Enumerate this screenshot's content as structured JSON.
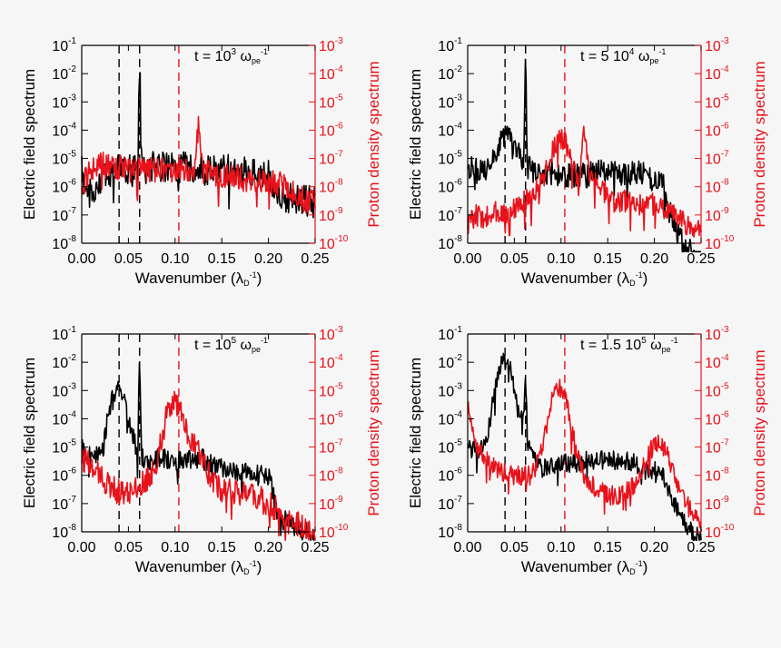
{
  "colors": {
    "electric": "#000000",
    "proton": "#e8121b",
    "background": "#f6f6f6"
  },
  "chart_data": [
    {
      "type": "line",
      "panel": "top-left",
      "annotation": {
        "prefix": "t = 10",
        "exp": "3",
        "unit": "ω",
        "sub": "pe",
        "sup": "-1"
      },
      "xlabel": "Wavenumber (λ",
      "xlabel_sub": "D",
      "xlabel_sup": "-1",
      "xlabel_end": ")",
      "ylabel_left": "Electric field spectrum",
      "ylabel_right": "Proton density spectrum",
      "xlim": [
        0,
        0.25
      ],
      "ylim_left_log10": [
        -8,
        -1
      ],
      "ylim_right_log10": [
        -10,
        -3
      ],
      "x_ticks": [
        "0.00",
        "0.05",
        "0.10",
        "0.15",
        "0.20",
        "0.25"
      ],
      "y_left_ticks": [
        {
          "base": "10",
          "exp": "-1"
        },
        {
          "base": "10",
          "exp": "-2"
        },
        {
          "base": "10",
          "exp": "-3"
        },
        {
          "base": "10",
          "exp": "-4"
        },
        {
          "base": "10",
          "exp": "-5"
        },
        {
          "base": "10",
          "exp": "-6"
        },
        {
          "base": "10",
          "exp": "-7"
        },
        {
          "base": "10",
          "exp": "-8"
        }
      ],
      "y_right_ticks": [
        {
          "base": "10",
          "exp": "-3"
        },
        {
          "base": "10",
          "exp": "-4"
        },
        {
          "base": "10",
          "exp": "-5"
        },
        {
          "base": "10",
          "exp": "-6"
        },
        {
          "base": "10",
          "exp": "-7"
        },
        {
          "base": "10",
          "exp": "-8"
        },
        {
          "base": "10",
          "exp": "-9"
        },
        {
          "base": "10",
          "exp": "-10"
        }
      ],
      "vlines": [
        {
          "x": 0.04,
          "color": "electric"
        },
        {
          "x": 0.062,
          "color": "electric"
        },
        {
          "x": 0.104,
          "color": "proton"
        }
      ],
      "series": [
        {
          "name": "Electric field spectrum",
          "axis": "left",
          "x": [
            0,
            0.005,
            0.01,
            0.015,
            0.02,
            0.025,
            0.03,
            0.035,
            0.04,
            0.045,
            0.05,
            0.055,
            0.06,
            0.062,
            0.064,
            0.07,
            0.08,
            0.09,
            0.1,
            0.11,
            0.12,
            0.13,
            0.14,
            0.15,
            0.16,
            0.17,
            0.18,
            0.19,
            0.2,
            0.21,
            0.22,
            0.23,
            0.24,
            0.25
          ],
          "log10": [
            -5.3,
            -6.6,
            -6.0,
            -6.4,
            -5.8,
            -5.7,
            -5.6,
            -5.5,
            -5.4,
            -5.5,
            -5.4,
            -5.3,
            -5.3,
            -1.5,
            -5.3,
            -5.2,
            -5.3,
            -5.3,
            -5.4,
            -5.3,
            -5.3,
            -5.4,
            -5.4,
            -5.4,
            -5.4,
            -5.5,
            -5.5,
            -5.6,
            -5.6,
            -6.2,
            -6.4,
            -6.5,
            -6.5,
            -6.5
          ],
          "noise": 0.55
        },
        {
          "name": "Proton density spectrum",
          "axis": "right",
          "x": [
            0,
            0.01,
            0.02,
            0.03,
            0.04,
            0.05,
            0.06,
            0.07,
            0.08,
            0.09,
            0.1,
            0.11,
            0.12,
            0.125,
            0.13,
            0.14,
            0.15,
            0.16,
            0.17,
            0.18,
            0.19,
            0.2,
            0.21,
            0.22,
            0.23,
            0.24,
            0.25
          ],
          "log10": [
            -8.0,
            -7.4,
            -7.2,
            -7.3,
            -7.3,
            -7.4,
            -7.4,
            -7.4,
            -7.4,
            -7.4,
            -7.4,
            -7.4,
            -7.5,
            -5.8,
            -7.5,
            -7.5,
            -7.6,
            -7.6,
            -7.7,
            -7.8,
            -7.8,
            -7.8,
            -7.9,
            -8.0,
            -8.3,
            -8.5,
            -8.6
          ],
          "noise": 0.45
        }
      ]
    },
    {
      "type": "line",
      "panel": "top-right",
      "annotation": {
        "prefix": "t = 5 10",
        "exp": "4",
        "unit": "ω",
        "sub": "pe",
        "sup": "-1"
      },
      "xlabel": "Wavenumber (λ",
      "xlabel_sub": "D",
      "xlabel_sup": "-1",
      "xlabel_end": ")",
      "ylabel_left": "Electric field spectrum",
      "ylabel_right": "Proton density spectrum",
      "xlim": [
        0,
        0.25
      ],
      "ylim_left_log10": [
        -8,
        -1
      ],
      "ylim_right_log10": [
        -10,
        -3
      ],
      "x_ticks": [
        "0.00",
        "0.05",
        "0.10",
        "0.15",
        "0.20",
        "0.25"
      ],
      "y_left_ticks": [
        {
          "base": "10",
          "exp": "-1"
        },
        {
          "base": "10",
          "exp": "-2"
        },
        {
          "base": "10",
          "exp": "-3"
        },
        {
          "base": "10",
          "exp": "-4"
        },
        {
          "base": "10",
          "exp": "-5"
        },
        {
          "base": "10",
          "exp": "-6"
        },
        {
          "base": "10",
          "exp": "-7"
        },
        {
          "base": "10",
          "exp": "-8"
        }
      ],
      "y_right_ticks": [
        {
          "base": "10",
          "exp": "-3"
        },
        {
          "base": "10",
          "exp": "-4"
        },
        {
          "base": "10",
          "exp": "-5"
        },
        {
          "base": "10",
          "exp": "-6"
        },
        {
          "base": "10",
          "exp": "-7"
        },
        {
          "base": "10",
          "exp": "-8"
        },
        {
          "base": "10",
          "exp": "-9"
        },
        {
          "base": "10",
          "exp": "-10"
        }
      ],
      "vlines": [
        {
          "x": 0.04,
          "color": "electric"
        },
        {
          "x": 0.062,
          "color": "electric"
        },
        {
          "x": 0.104,
          "color": "proton"
        }
      ],
      "series": [
        {
          "name": "Electric field spectrum",
          "axis": "left",
          "x": [
            0,
            0.005,
            0.01,
            0.02,
            0.03,
            0.035,
            0.04,
            0.045,
            0.05,
            0.055,
            0.06,
            0.062,
            0.064,
            0.07,
            0.08,
            0.09,
            0.1,
            0.11,
            0.12,
            0.13,
            0.14,
            0.15,
            0.16,
            0.17,
            0.18,
            0.19,
            0.2,
            0.21,
            0.215,
            0.22,
            0.23,
            0.24,
            0.25
          ],
          "log10": [
            -5.6,
            -5.2,
            -5.5,
            -5.3,
            -4.8,
            -4.3,
            -4.2,
            -4.3,
            -4.5,
            -4.8,
            -5.4,
            -1.5,
            -5.3,
            -5.5,
            -5.6,
            -5.5,
            -5.6,
            -5.6,
            -5.6,
            -5.6,
            -5.4,
            -5.4,
            -5.6,
            -5.6,
            -5.5,
            -5.6,
            -5.8,
            -6.0,
            -6.8,
            -7.2,
            -7.9,
            -8.3,
            -8.5
          ],
          "noise": 0.45
        },
        {
          "name": "Proton density spectrum",
          "axis": "right",
          "x": [
            0,
            0.01,
            0.02,
            0.03,
            0.04,
            0.05,
            0.06,
            0.07,
            0.08,
            0.09,
            0.095,
            0.1,
            0.105,
            0.11,
            0.12,
            0.125,
            0.13,
            0.14,
            0.15,
            0.16,
            0.17,
            0.18,
            0.19,
            0.2,
            0.21,
            0.22,
            0.23,
            0.24,
            0.25
          ],
          "log10": [
            -9.3,
            -9.0,
            -9.1,
            -8.9,
            -9.0,
            -8.8,
            -8.5,
            -8.3,
            -7.8,
            -6.8,
            -6.5,
            -6.3,
            -6.5,
            -7.0,
            -7.8,
            -5.8,
            -7.6,
            -8.0,
            -8.3,
            -8.6,
            -8.5,
            -8.6,
            -8.7,
            -8.6,
            -8.8,
            -9.0,
            -9.2,
            -9.5,
            -9.6
          ],
          "noise": 0.4
        }
      ]
    },
    {
      "type": "line",
      "panel": "bottom-left",
      "annotation": {
        "prefix": "t = 10",
        "exp": "5",
        "unit": "ω",
        "sub": "pe",
        "sup": "-1"
      },
      "xlabel": "Wavenumber (λ",
      "xlabel_sub": "D",
      "xlabel_sup": "-1",
      "xlabel_end": ")",
      "ylabel_left": "Electric field spectrum",
      "ylabel_right": "Proton density spectrum",
      "xlim": [
        0,
        0.25
      ],
      "ylim_left_log10": [
        -8,
        -1
      ],
      "ylim_right_log10": [
        -10,
        -3
      ],
      "x_ticks": [
        "0.00",
        "0.05",
        "0.10",
        "0.15",
        "0.20",
        "0.25"
      ],
      "y_left_ticks": [
        {
          "base": "10",
          "exp": "-1"
        },
        {
          "base": "10",
          "exp": "-2"
        },
        {
          "base": "10",
          "exp": "-3"
        },
        {
          "base": "10",
          "exp": "-4"
        },
        {
          "base": "10",
          "exp": "-5"
        },
        {
          "base": "10",
          "exp": "-6"
        },
        {
          "base": "10",
          "exp": "-7"
        },
        {
          "base": "10",
          "exp": "-8"
        }
      ],
      "y_right_ticks": [
        {
          "base": "10",
          "exp": "-3"
        },
        {
          "base": "10",
          "exp": "-4"
        },
        {
          "base": "10",
          "exp": "-5"
        },
        {
          "base": "10",
          "exp": "-6"
        },
        {
          "base": "10",
          "exp": "-7"
        },
        {
          "base": "10",
          "exp": "-8"
        },
        {
          "base": "10",
          "exp": "-9"
        },
        {
          "base": "10",
          "exp": "-10"
        }
      ],
      "vlines": [
        {
          "x": 0.04,
          "color": "electric"
        },
        {
          "x": 0.062,
          "color": "electric"
        },
        {
          "x": 0.104,
          "color": "proton"
        }
      ],
      "series": [
        {
          "name": "Electric field spectrum",
          "axis": "left",
          "x": [
            0,
            0.01,
            0.02,
            0.025,
            0.03,
            0.035,
            0.04,
            0.045,
            0.05,
            0.055,
            0.06,
            0.062,
            0.064,
            0.07,
            0.08,
            0.09,
            0.1,
            0.11,
            0.12,
            0.13,
            0.14,
            0.15,
            0.16,
            0.17,
            0.18,
            0.19,
            0.2,
            0.205,
            0.21,
            0.22,
            0.23,
            0.24,
            0.25
          ],
          "log10": [
            -5.0,
            -5.4,
            -5.2,
            -4.5,
            -3.6,
            -3.1,
            -3.0,
            -3.3,
            -4.0,
            -4.6,
            -5.3,
            -1.5,
            -5.4,
            -5.5,
            -5.4,
            -5.4,
            -5.5,
            -5.4,
            -5.5,
            -5.4,
            -5.6,
            -5.7,
            -5.8,
            -5.9,
            -5.9,
            -5.9,
            -6.0,
            -6.6,
            -7.6,
            -7.6,
            -7.9,
            -8.0,
            -8.2
          ],
          "noise": 0.35
        },
        {
          "name": "Proton density spectrum",
          "axis": "right",
          "x": [
            0,
            0.01,
            0.02,
            0.03,
            0.04,
            0.05,
            0.06,
            0.07,
            0.08,
            0.085,
            0.09,
            0.095,
            0.1,
            0.105,
            0.11,
            0.115,
            0.12,
            0.13,
            0.14,
            0.15,
            0.16,
            0.17,
            0.18,
            0.19,
            0.2,
            0.21,
            0.22,
            0.23,
            0.24,
            0.25
          ],
          "log10": [
            -7.4,
            -7.6,
            -8.0,
            -8.4,
            -8.6,
            -8.6,
            -8.4,
            -8.2,
            -7.6,
            -6.8,
            -6.0,
            -5.5,
            -5.4,
            -5.6,
            -6.2,
            -6.6,
            -6.8,
            -7.6,
            -8.1,
            -8.5,
            -8.6,
            -8.6,
            -8.7,
            -8.8,
            -9.0,
            -9.2,
            -9.5,
            -9.7,
            -9.9,
            -10.0
          ],
          "noise": 0.45
        }
      ]
    },
    {
      "type": "line",
      "panel": "bottom-right",
      "annotation": {
        "prefix": "t = 1.5 10",
        "exp": "5",
        "unit": "ω",
        "sub": "pe",
        "sup": "-1"
      },
      "xlabel": "Wavenumber (λ",
      "xlabel_sub": "D",
      "xlabel_sup": "-1",
      "xlabel_end": ")",
      "ylabel_left": "Electric field spectrum",
      "ylabel_right": "Proton density spectrum",
      "xlim": [
        0,
        0.25
      ],
      "ylim_left_log10": [
        -8,
        -1
      ],
      "ylim_right_log10": [
        -10,
        -3
      ],
      "x_ticks": [
        "0.00",
        "0.05",
        "0.10",
        "0.15",
        "0.20",
        "0.25"
      ],
      "y_left_ticks": [
        {
          "base": "10",
          "exp": "-1"
        },
        {
          "base": "10",
          "exp": "-2"
        },
        {
          "base": "10",
          "exp": "-3"
        },
        {
          "base": "10",
          "exp": "-4"
        },
        {
          "base": "10",
          "exp": "-5"
        },
        {
          "base": "10",
          "exp": "-6"
        },
        {
          "base": "10",
          "exp": "-7"
        },
        {
          "base": "10",
          "exp": "-8"
        }
      ],
      "y_right_ticks": [
        {
          "base": "10",
          "exp": "-3"
        },
        {
          "base": "10",
          "exp": "-4"
        },
        {
          "base": "10",
          "exp": "-5"
        },
        {
          "base": "10",
          "exp": "-6"
        },
        {
          "base": "10",
          "exp": "-7"
        },
        {
          "base": "10",
          "exp": "-8"
        },
        {
          "base": "10",
          "exp": "-9"
        },
        {
          "base": "10",
          "exp": "-10"
        }
      ],
      "vlines": [
        {
          "x": 0.04,
          "color": "electric"
        },
        {
          "x": 0.062,
          "color": "electric"
        },
        {
          "x": 0.104,
          "color": "proton"
        }
      ],
      "series": [
        {
          "name": "Electric field spectrum",
          "axis": "left",
          "x": [
            0,
            0.01,
            0.02,
            0.025,
            0.03,
            0.035,
            0.04,
            0.045,
            0.05,
            0.055,
            0.06,
            0.062,
            0.064,
            0.07,
            0.08,
            0.09,
            0.1,
            0.11,
            0.12,
            0.13,
            0.14,
            0.15,
            0.16,
            0.17,
            0.18,
            0.19,
            0.2,
            0.21,
            0.215,
            0.22,
            0.23,
            0.24,
            0.25
          ],
          "log10": [
            -5.0,
            -5.2,
            -4.8,
            -3.8,
            -2.8,
            -2.2,
            -1.9,
            -2.2,
            -2.9,
            -3.6,
            -4.0,
            -2.5,
            -4.8,
            -5.4,
            -5.7,
            -5.6,
            -5.5,
            -5.6,
            -5.5,
            -5.5,
            -5.4,
            -5.4,
            -5.5,
            -5.5,
            -5.6,
            -5.8,
            -5.8,
            -6.0,
            -6.6,
            -7.0,
            -7.6,
            -8.0,
            -8.2
          ],
          "noise": 0.35
        },
        {
          "name": "Proton density spectrum",
          "axis": "right",
          "x": [
            0,
            0.005,
            0.01,
            0.02,
            0.03,
            0.04,
            0.05,
            0.06,
            0.07,
            0.08,
            0.085,
            0.09,
            0.095,
            0.1,
            0.105,
            0.11,
            0.12,
            0.13,
            0.14,
            0.15,
            0.16,
            0.17,
            0.18,
            0.19,
            0.195,
            0.2,
            0.205,
            0.21,
            0.215,
            0.22,
            0.23,
            0.24,
            0.25
          ],
          "log10": [
            -5.2,
            -6.3,
            -7.1,
            -7.5,
            -7.8,
            -7.9,
            -8.0,
            -8.0,
            -7.9,
            -7.0,
            -6.2,
            -5.4,
            -5.0,
            -4.9,
            -5.3,
            -6.2,
            -7.6,
            -8.3,
            -8.5,
            -8.7,
            -8.7,
            -8.6,
            -8.3,
            -7.6,
            -7.2,
            -6.9,
            -6.9,
            -7.0,
            -7.3,
            -7.9,
            -8.8,
            -9.3,
            -9.7
          ],
          "noise": 0.35
        }
      ]
    }
  ]
}
